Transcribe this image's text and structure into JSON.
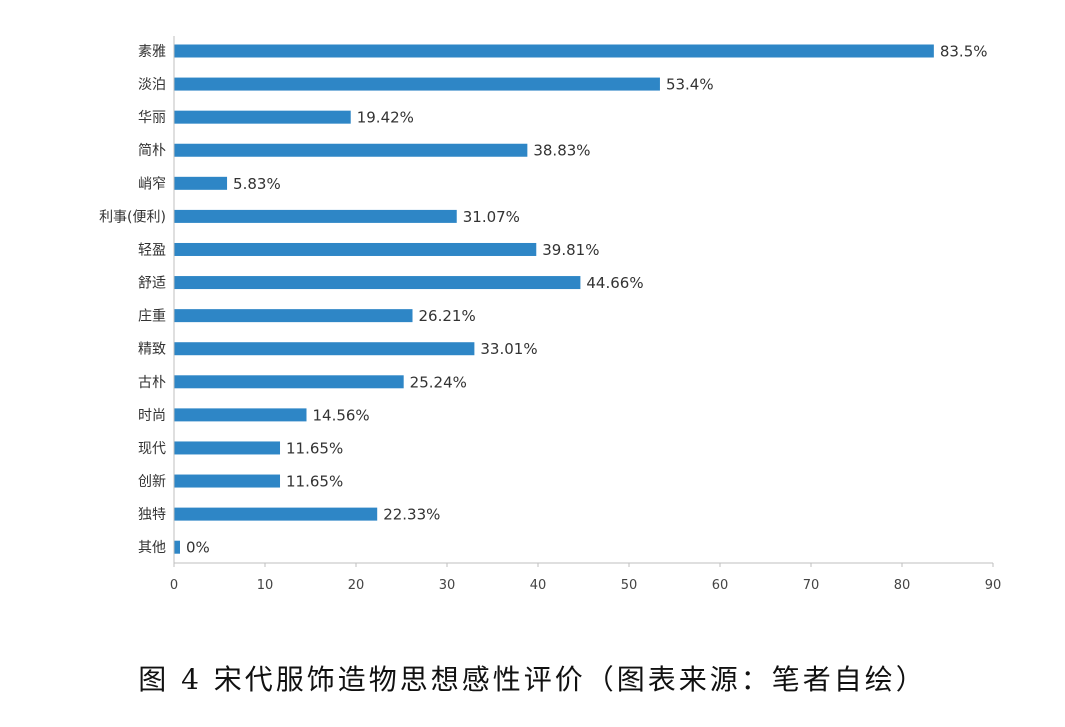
{
  "colors": {
    "bar": "#2E86C6",
    "axis": "#bfbfbf",
    "text": "#333333"
  },
  "caption": "图 4 宋代服饰造物思想感性评价（图表来源：笔者自绘）",
  "chart_data": {
    "type": "bar",
    "orientation": "horizontal",
    "categories": [
      "素雅",
      "淡泊",
      "华丽",
      "简朴",
      "峭窄",
      "利事(便利)",
      "轻盈",
      "舒适",
      "庄重",
      "精致",
      "古朴",
      "时尚",
      "现代",
      "创新",
      "独特",
      "其他"
    ],
    "values": [
      83.5,
      53.4,
      19.42,
      38.83,
      5.83,
      31.07,
      39.81,
      44.66,
      26.21,
      33.01,
      25.24,
      14.56,
      11.65,
      11.65,
      22.33,
      0
    ],
    "value_labels": [
      "83.5%",
      "53.4%",
      "19.42%",
      "38.83%",
      "5.83%",
      "31.07%",
      "39.81%",
      "44.66%",
      "26.21%",
      "33.01%",
      "25.24%",
      "14.56%",
      "11.65%",
      "11.65%",
      "22.33%",
      "0%"
    ],
    "xticks": [
      0,
      10,
      20,
      30,
      40,
      50,
      60,
      70,
      80,
      90
    ],
    "xlim": [
      0,
      90
    ],
    "grid": false,
    "legend": "none"
  }
}
